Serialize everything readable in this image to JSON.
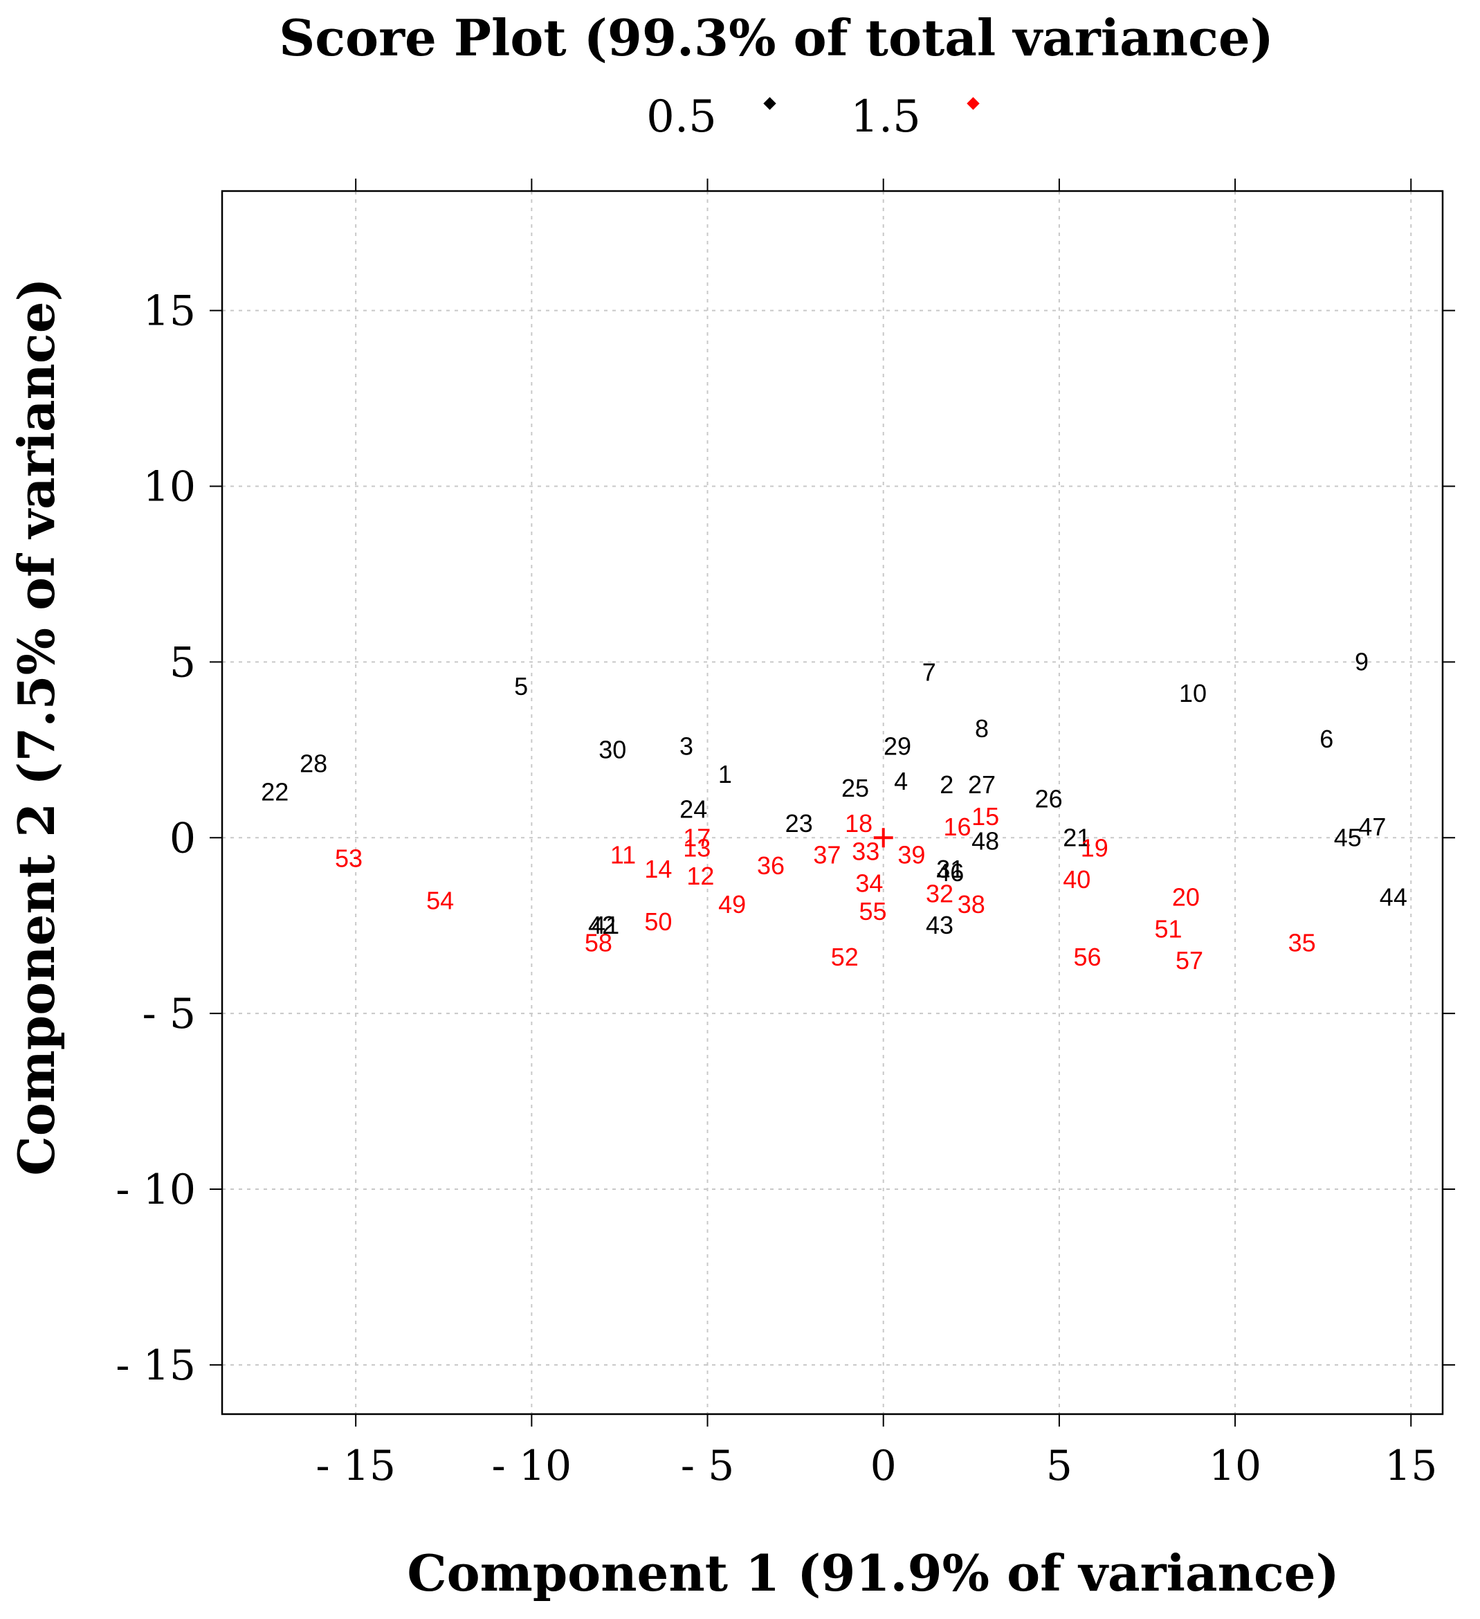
{
  "chart_data": {
    "type": "scatter",
    "title": "Score Plot (99.3% of total variance)",
    "xlabel": "Component 1 (91.9% of variance)",
    "ylabel": "Component 2 (7.5% of variance)",
    "xlim": [
      -18.8,
      15.9
    ],
    "ylim": [
      -16.4,
      18.4
    ],
    "xticks": [
      -15,
      -10,
      -5,
      0,
      5,
      10,
      15
    ],
    "yticks": [
      -15,
      -10,
      -5,
      0,
      5,
      10,
      15
    ],
    "xtick_labels": [
      "- 15",
      "- 10",
      "- 5",
      "0",
      "5",
      "10",
      "15"
    ],
    "ytick_labels": [
      "- 15",
      "- 10",
      "- 5",
      "0",
      "5",
      "10",
      "15"
    ],
    "grid": true,
    "legend_position": "top",
    "colors": {
      "black": "#000000",
      "red": "#ff0000"
    },
    "series": [
      {
        "name": "0.5",
        "color": "#000000",
        "marker": "diamond",
        "points": [
          {
            "label": "1",
            "x": -4.5,
            "y": 1.8
          },
          {
            "label": "2",
            "x": 1.8,
            "y": 1.5
          },
          {
            "label": "3",
            "x": -5.6,
            "y": 2.6
          },
          {
            "label": "4",
            "x": 0.5,
            "y": 1.6
          },
          {
            "label": "5",
            "x": -10.3,
            "y": 4.3
          },
          {
            "label": "6",
            "x": 12.6,
            "y": 2.8
          },
          {
            "label": "7",
            "x": 1.3,
            "y": 4.7
          },
          {
            "label": "8",
            "x": 2.8,
            "y": 3.1
          },
          {
            "label": "9",
            "x": 13.6,
            "y": 5.0
          },
          {
            "label": "10",
            "x": 8.8,
            "y": 4.1
          },
          {
            "label": "21",
            "x": 5.5,
            "y": 0.0
          },
          {
            "label": "22",
            "x": -17.3,
            "y": 1.3
          },
          {
            "label": "23",
            "x": -2.4,
            "y": 0.4
          },
          {
            "label": "24",
            "x": -5.4,
            "y": 0.8
          },
          {
            "label": "25",
            "x": -0.8,
            "y": 1.4
          },
          {
            "label": "26",
            "x": 4.7,
            "y": 1.1
          },
          {
            "label": "27",
            "x": 2.8,
            "y": 1.5
          },
          {
            "label": "28",
            "x": -16.2,
            "y": 2.1
          },
          {
            "label": "29",
            "x": 0.4,
            "y": 2.6
          },
          {
            "label": "30",
            "x": -7.7,
            "y": 2.5
          },
          {
            "label": "31",
            "x": 1.9,
            "y": -0.9
          },
          {
            "label": "41",
            "x": -7.9,
            "y": -2.5
          },
          {
            "label": "42",
            "x": -8.0,
            "y": -2.5
          },
          {
            "label": "43",
            "x": 1.6,
            "y": -2.5
          },
          {
            "label": "44",
            "x": 14.5,
            "y": -1.7
          },
          {
            "label": "45",
            "x": 13.2,
            "y": 0.0
          },
          {
            "label": "46",
            "x": 1.9,
            "y": -1.0
          },
          {
            "label": "47",
            "x": 13.9,
            "y": 0.3
          },
          {
            "label": "48",
            "x": 2.9,
            "y": -0.1
          }
        ]
      },
      {
        "name": "1.5",
        "color": "#ff0000",
        "marker": "diamond",
        "points": [
          {
            "label": "11",
            "x": -7.4,
            "y": -0.5
          },
          {
            "label": "12",
            "x": -5.2,
            "y": -1.1
          },
          {
            "label": "13",
            "x": -5.3,
            "y": -0.3
          },
          {
            "label": "14",
            "x": -6.4,
            "y": -0.9
          },
          {
            "label": "15",
            "x": 2.9,
            "y": 0.6
          },
          {
            "label": "16",
            "x": 2.1,
            "y": 0.3
          },
          {
            "label": "17",
            "x": -5.3,
            "y": 0.0
          },
          {
            "label": "18",
            "x": -0.7,
            "y": 0.4
          },
          {
            "label": "19",
            "x": 6.0,
            "y": -0.3
          },
          {
            "label": "20",
            "x": 8.6,
            "y": -1.7
          },
          {
            "label": "32",
            "x": 1.6,
            "y": -1.6
          },
          {
            "label": "33",
            "x": -0.5,
            "y": -0.4
          },
          {
            "label": "34",
            "x": -0.4,
            "y": -1.3
          },
          {
            "label": "35",
            "x": 11.9,
            "y": -3.0
          },
          {
            "label": "36",
            "x": -3.2,
            "y": -0.8
          },
          {
            "label": "37",
            "x": -1.6,
            "y": -0.5
          },
          {
            "label": "38",
            "x": 2.5,
            "y": -1.9
          },
          {
            "label": "39",
            "x": 0.8,
            "y": -0.5
          },
          {
            "label": "40",
            "x": 5.5,
            "y": -1.2
          },
          {
            "label": "49",
            "x": -4.3,
            "y": -1.9
          },
          {
            "label": "50",
            "x": -6.4,
            "y": -2.4
          },
          {
            "label": "51",
            "x": 8.1,
            "y": -2.6
          },
          {
            "label": "52",
            "x": -1.1,
            "y": -3.4
          },
          {
            "label": "53",
            "x": -15.2,
            "y": -0.6
          },
          {
            "label": "54",
            "x": -12.6,
            "y": -1.8
          },
          {
            "label": "55",
            "x": -0.3,
            "y": -2.1
          },
          {
            "label": "56",
            "x": 5.8,
            "y": -3.4
          },
          {
            "label": "57",
            "x": 8.7,
            "y": -3.5
          },
          {
            "label": "58",
            "x": -8.1,
            "y": -3.0
          }
        ]
      }
    ],
    "center_marker": {
      "x": 0,
      "y": 0
    }
  }
}
